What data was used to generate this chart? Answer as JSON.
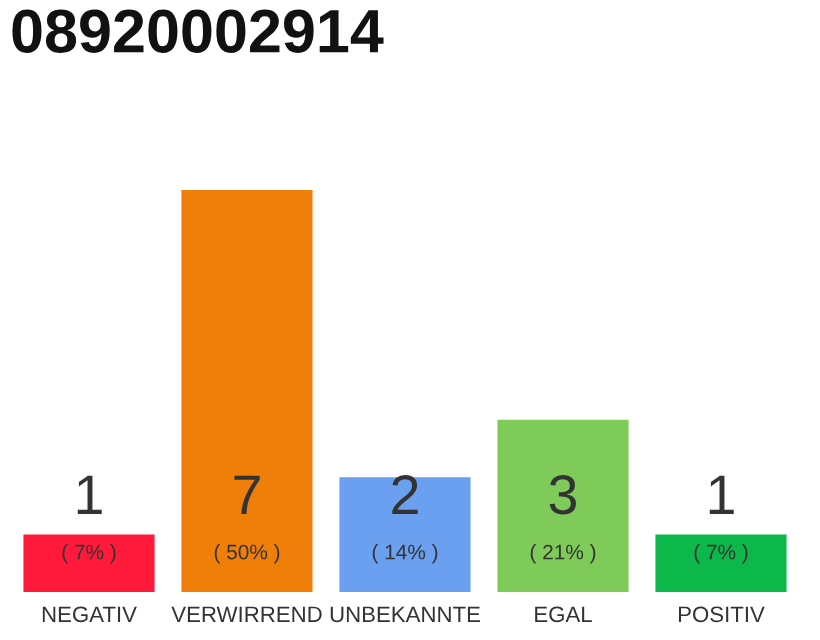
{
  "chart_data": {
    "type": "bar",
    "title": "08920002914",
    "categories": [
      "NEGATIV",
      "VERWIRREND",
      "UNBEKANNTE",
      "EGAL",
      "POSITIV"
    ],
    "values": [
      1,
      7,
      2,
      3,
      1
    ],
    "colors": [
      "#ff1a3c",
      "#f07f0a",
      "#6b9ff0",
      "#7ecb5a",
      "#0cb84a"
    ],
    "value_labels": [
      "1",
      "7",
      "2",
      "3",
      "1"
    ],
    "annotations": [
      "( 7% )",
      "( 50% )",
      "( 14% )",
      "( 21% )",
      "( 7% )"
    ],
    "grid": false,
    "legend": false
  }
}
